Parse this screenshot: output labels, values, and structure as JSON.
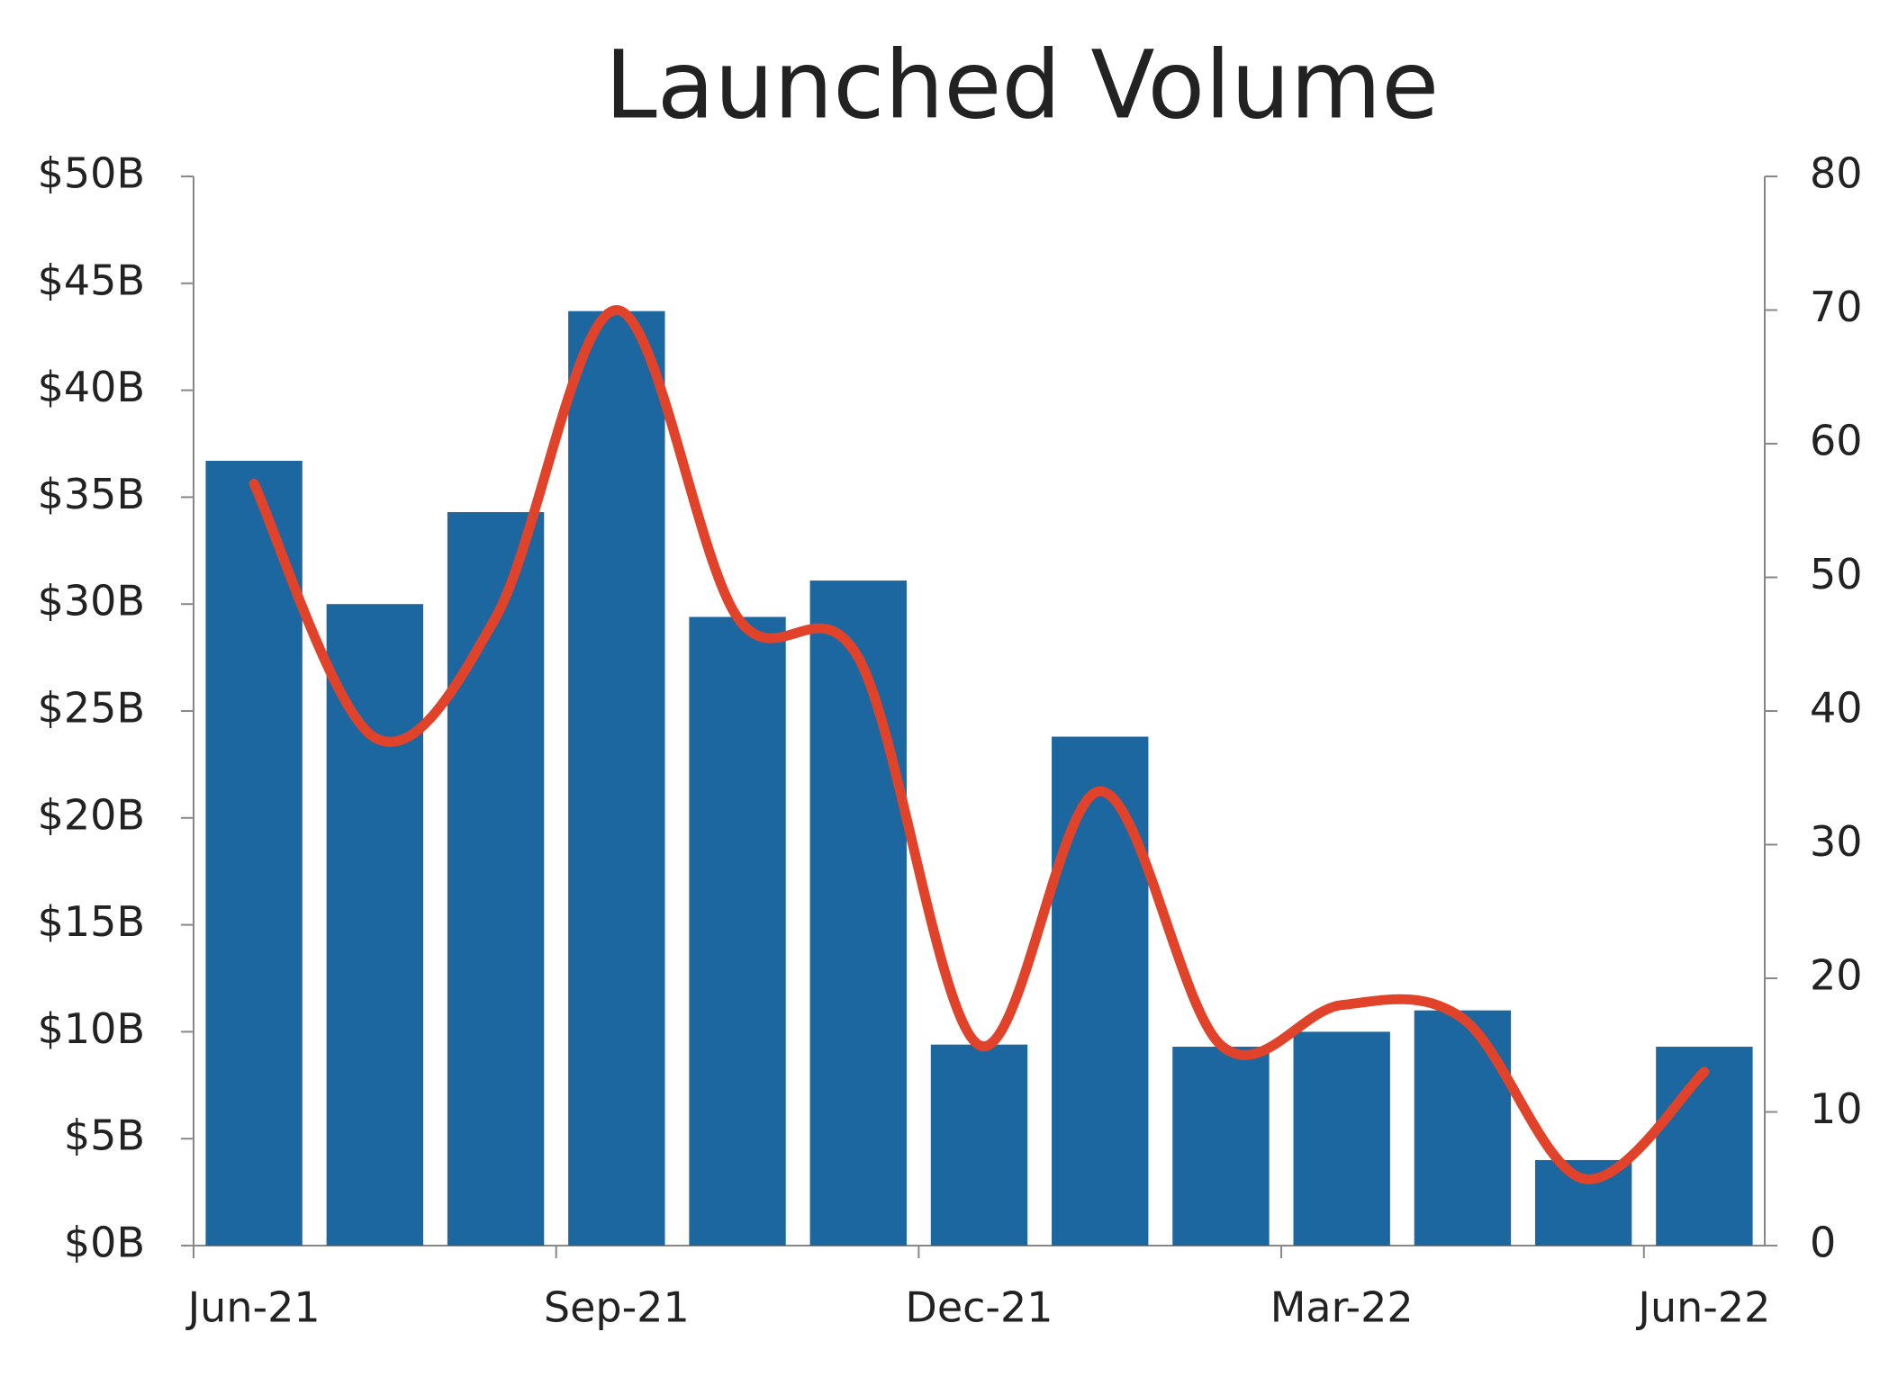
{
  "chart_data": {
    "type": "bar-line",
    "title": "Launched Volume",
    "categories": [
      "Jun-21",
      null,
      null,
      "Sep-21",
      null,
      null,
      "Dec-21",
      null,
      null,
      "Mar-22",
      null,
      null,
      "Jun-22"
    ],
    "series": [
      {
        "type": "bar",
        "color": "#1c67a0",
        "values": [
          36.7,
          30,
          34.3,
          43.7,
          29.4,
          31.1,
          9.4,
          23.8,
          9.3,
          10,
          11,
          4,
          9.3
        ]
      },
      {
        "type": "line",
        "color": "#e1432a",
        "axis": "y2",
        "smooth": true,
        "values": [
          57,
          38,
          47,
          70,
          47,
          44,
          15,
          34,
          15,
          18,
          17,
          5,
          13
        ]
      }
    ],
    "ylim": [
      0,
      50
    ],
    "yticks": [
      {
        "value": 0,
        "label": "$0B"
      },
      {
        "value": 5,
        "label": "$5B"
      },
      {
        "value": 10,
        "label": "$10B"
      },
      {
        "value": 15,
        "label": "$15B"
      },
      {
        "value": 20,
        "label": "$20B"
      },
      {
        "value": 25,
        "label": "$25B"
      },
      {
        "value": 30,
        "label": "$30B"
      },
      {
        "value": 35,
        "label": "$35B"
      },
      {
        "value": 40,
        "label": "$40B"
      },
      {
        "value": 45,
        "label": "$45B"
      },
      {
        "value": 50,
        "label": "$50B"
      }
    ],
    "y2lim": [
      0,
      80
    ],
    "y2ticks": [
      0,
      10,
      20,
      30,
      40,
      50,
      60,
      70,
      80
    ]
  }
}
